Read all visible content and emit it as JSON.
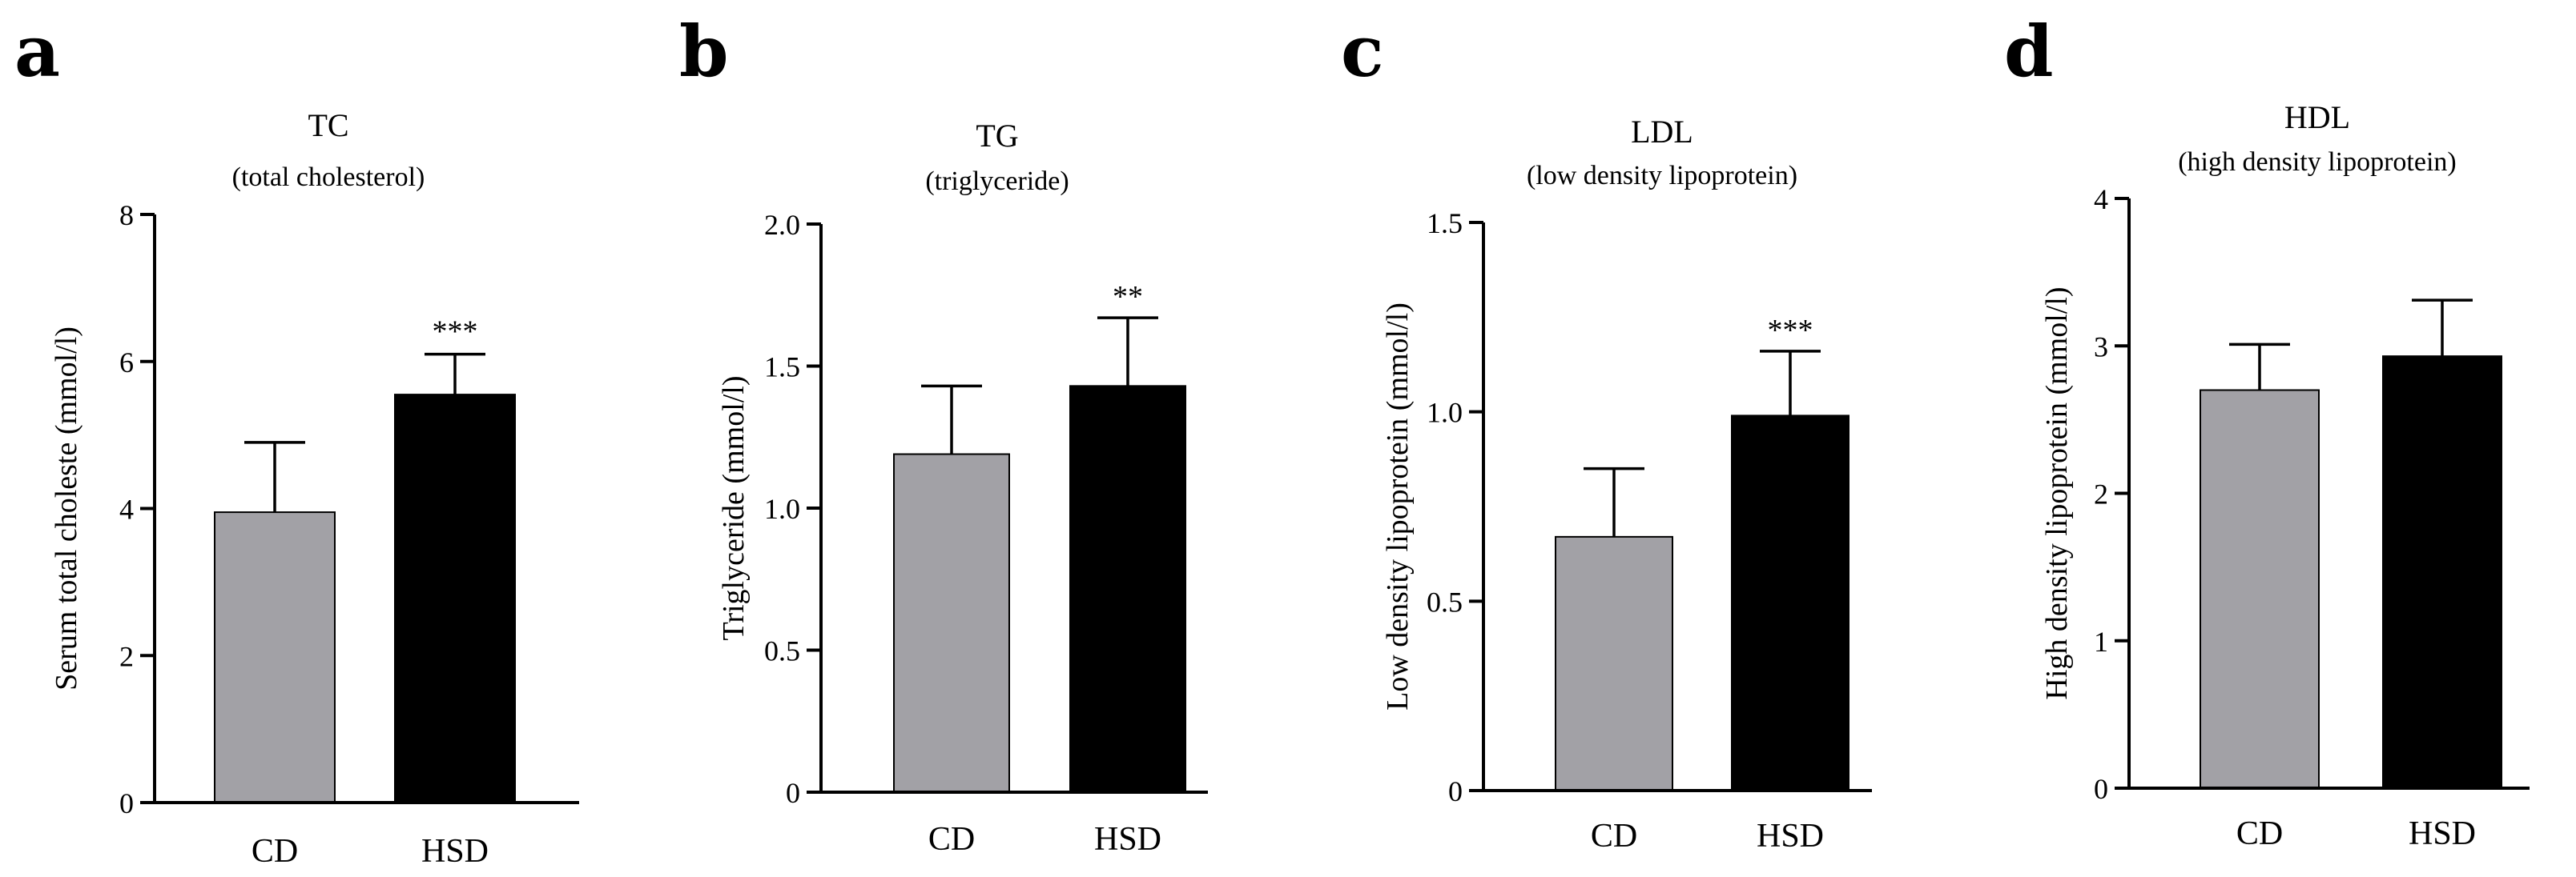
{
  "colors": {
    "cd_bar": "#a2a1a6",
    "hsd_bar": "#000000",
    "axis": "#000000"
  },
  "chart_data": [
    {
      "type": "bar",
      "panel": "a",
      "title": "TC",
      "subtitle": "(total cholesterol)",
      "ylabel": "Serum total choleste (mmol/l)",
      "categories": [
        "CD",
        "HSD"
      ],
      "values": [
        3.95,
        5.55
      ],
      "errors": [
        0.95,
        0.55
      ],
      "significance": [
        "",
        "***"
      ],
      "ylim": [
        0,
        8
      ],
      "yticks": [
        0,
        2,
        4,
        6,
        8
      ],
      "ytick_labels": [
        "0",
        "2",
        "4",
        "6",
        "8"
      ]
    },
    {
      "type": "bar",
      "panel": "b",
      "title": "TG",
      "subtitle": "(triglyceride)",
      "ylabel": "Triglyceride (mmol/l)",
      "categories": [
        "CD",
        "HSD"
      ],
      "values": [
        1.19,
        1.43
      ],
      "errors": [
        0.24,
        0.24
      ],
      "significance": [
        "",
        "**"
      ],
      "ylim": [
        0,
        2.0
      ],
      "yticks": [
        0,
        0.5,
        1.0,
        1.5,
        2.0
      ],
      "ytick_labels": [
        "0",
        "0.5",
        "1.0",
        "1.5",
        "2.0"
      ]
    },
    {
      "type": "bar",
      "panel": "c",
      "title": "LDL",
      "subtitle": "(low density lipoprotein)",
      "ylabel": "Low density lipoprotein (mmol/l)",
      "categories": [
        "CD",
        "HSD"
      ],
      "values": [
        0.67,
        0.99
      ],
      "errors": [
        0.18,
        0.17
      ],
      "significance": [
        "",
        "***"
      ],
      "ylim": [
        0,
        1.5
      ],
      "yticks": [
        0,
        0.5,
        1.0,
        1.5
      ],
      "ytick_labels": [
        "0",
        "0.5",
        "1.0",
        "1.5"
      ]
    },
    {
      "type": "bar",
      "panel": "d",
      "title": "HDL",
      "subtitle": "(high density lipoprotein)",
      "ylabel": "High density lipoprotein (mmol/l)",
      "categories": [
        "CD",
        "HSD"
      ],
      "values": [
        2.7,
        2.93
      ],
      "errors": [
        0.31,
        0.38
      ],
      "significance": [
        "",
        ""
      ],
      "ylim": [
        0,
        4
      ],
      "yticks": [
        0,
        1,
        2,
        3,
        4
      ],
      "ytick_labels": [
        "0",
        "1",
        "2",
        "3",
        "4"
      ]
    }
  ]
}
